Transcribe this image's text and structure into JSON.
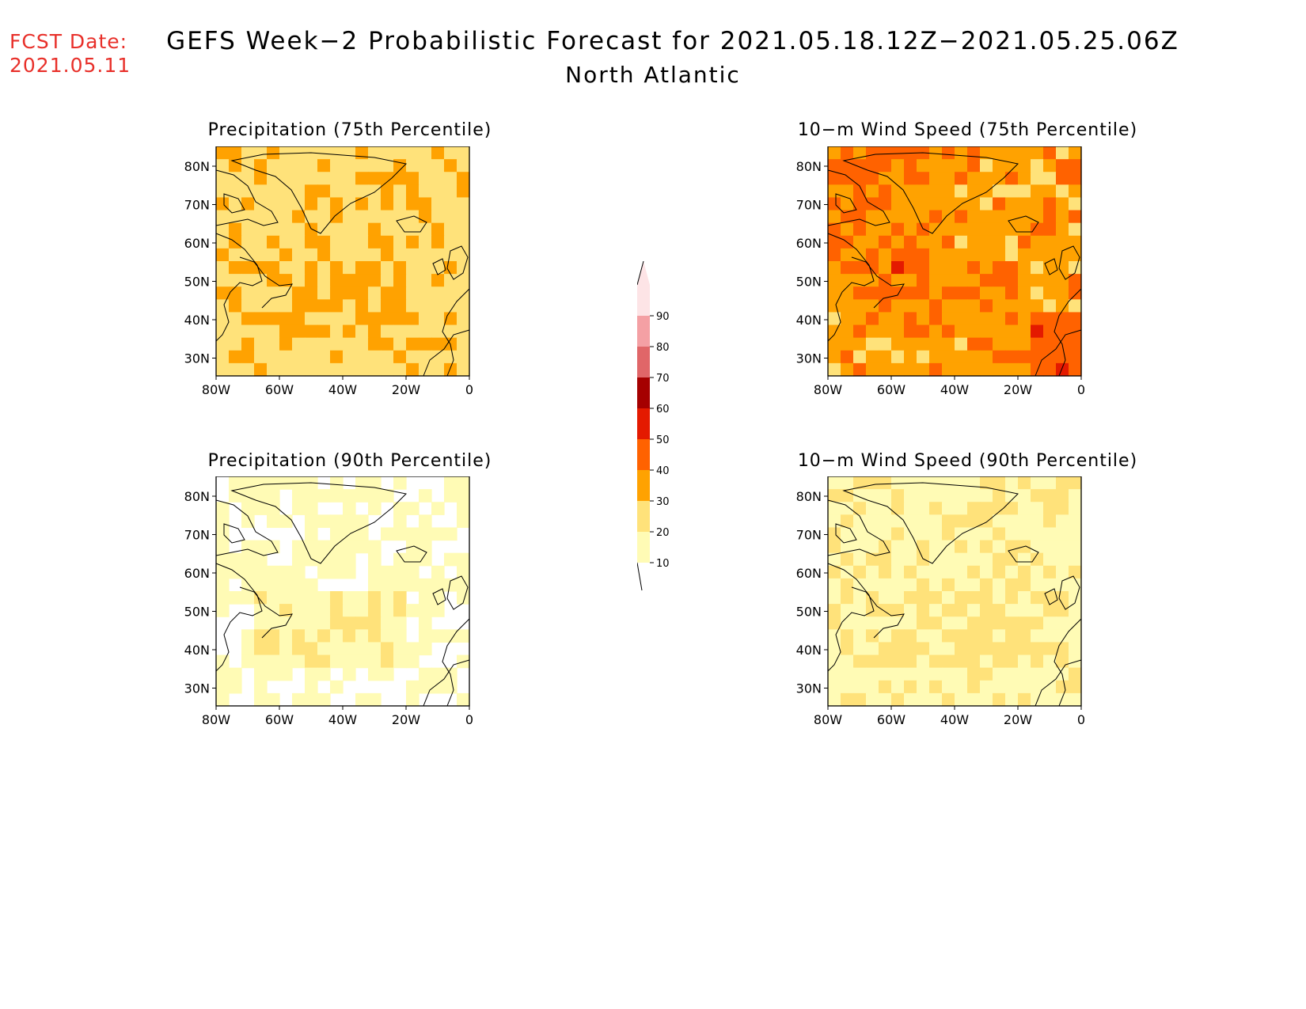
{
  "header": {
    "fcst_label": "FCST Date:",
    "fcst_date": "2021.05.11",
    "title": "GEFS Week−2 Probabilistic Forecast for 2021.05.18.12Z−2021.05.25.06Z",
    "region": "North Atlantic"
  },
  "axes": {
    "lat_ticks": [
      "80N",
      "70N",
      "60N",
      "50N",
      "40N",
      "30N"
    ],
    "lon_ticks": [
      "80W",
      "60W",
      "40W",
      "20W",
      "0"
    ]
  },
  "panels": [
    {
      "title": "Precipitation (75th Percentile)",
      "intensity": "moderate"
    },
    {
      "title": "10−m Wind Speed (75th Percentile)",
      "intensity": "high"
    },
    {
      "title": "Precipitation (90th Percentile)",
      "intensity": "low"
    },
    {
      "title": "10−m Wind Speed (90th Percentile)",
      "intensity": "low-moderate"
    }
  ],
  "colorbar": {
    "levels": [
      "10",
      "20",
      "30",
      "40",
      "50",
      "60",
      "70",
      "80",
      "90"
    ],
    "colors": [
      "#fffbb5",
      "#ffe27a",
      "#ffa201",
      "#ff6200",
      "#e41a00",
      "#a50000",
      "#e06668",
      "#f4a0a4",
      "#fde4e6"
    ]
  }
}
